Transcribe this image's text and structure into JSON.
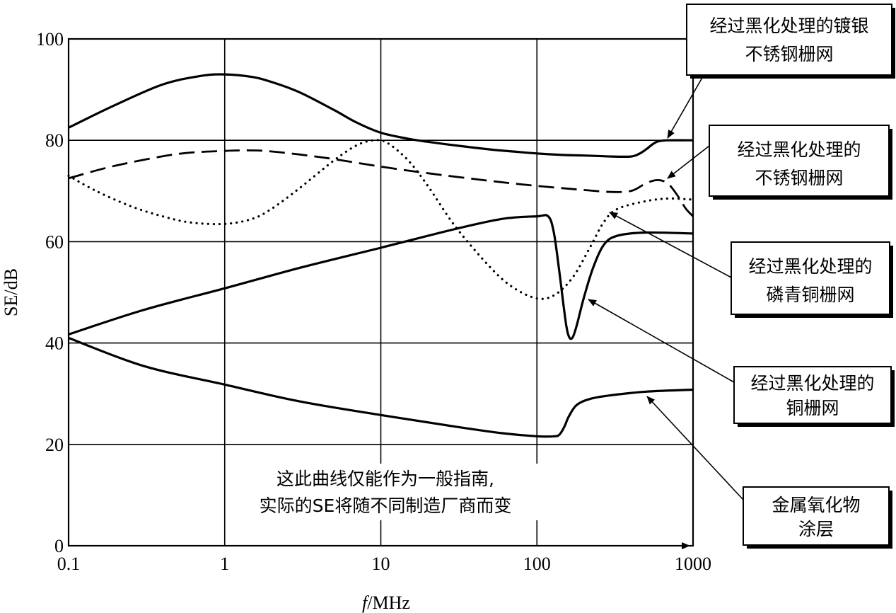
{
  "chart_data": {
    "type": "line",
    "xscale": "log",
    "xlim": [
      0.1,
      1000
    ],
    "ylim": [
      0,
      100
    ],
    "grid": true,
    "xticks": [
      "0.1",
      "1",
      "10",
      "100",
      "1000"
    ],
    "yticks": [
      "0",
      "20",
      "40",
      "60",
      "80",
      "100"
    ],
    "xlabel": {
      "italic": "f",
      "rest": "/MHz"
    },
    "ylabel": "SE/dB",
    "annotation": [
      "这此曲线仅能作为一般指南,",
      "实际的SE将随不同制造厂商而变"
    ],
    "series": [
      {
        "name": "经过黑化处理的镀银不锈钢栅网",
        "style": "solid",
        "label_lines": [
          "经过黑化处理的镀银",
          "不锈钢栅网"
        ],
        "points": [
          [
            0.1,
            82.5
          ],
          [
            0.2,
            87
          ],
          [
            0.4,
            91
          ],
          [
            0.7,
            92.7
          ],
          [
            1,
            93
          ],
          [
            1.5,
            92.5
          ],
          [
            2,
            91.5
          ],
          [
            3,
            89.5
          ],
          [
            5,
            86
          ],
          [
            7,
            83.5
          ],
          [
            10,
            81.5
          ],
          [
            15,
            80.3
          ],
          [
            20,
            79.7
          ],
          [
            30,
            79
          ],
          [
            50,
            78.2
          ],
          [
            70,
            77.8
          ],
          [
            100,
            77.4
          ],
          [
            150,
            77.1
          ],
          [
            200,
            77
          ],
          [
            300,
            76.8
          ],
          [
            400,
            76.8
          ],
          [
            450,
            77.3
          ],
          [
            500,
            78.2
          ],
          [
            550,
            79.2
          ],
          [
            600,
            79.8
          ],
          [
            700,
            80
          ],
          [
            1000,
            80
          ]
        ]
      },
      {
        "name": "经过黑化处理的不锈钢栅网",
        "style": "dashed",
        "label_lines": [
          "经过黑化处理的",
          "不锈钢栅网"
        ],
        "points": [
          [
            0.1,
            72.5
          ],
          [
            0.2,
            75
          ],
          [
            0.5,
            77.3
          ],
          [
            1,
            77.9
          ],
          [
            1.5,
            78
          ],
          [
            2,
            77.8
          ],
          [
            3,
            77.2
          ],
          [
            5,
            76.3
          ],
          [
            10,
            74.8
          ],
          [
            20,
            73.5
          ],
          [
            50,
            72
          ],
          [
            100,
            71
          ],
          [
            200,
            70.2
          ],
          [
            300,
            69.8
          ],
          [
            400,
            70
          ],
          [
            480,
            71.2
          ],
          [
            550,
            72
          ],
          [
            620,
            72.1
          ],
          [
            700,
            71.3
          ],
          [
            800,
            69
          ],
          [
            900,
            66.5
          ],
          [
            1000,
            65
          ]
        ]
      },
      {
        "name": "经过黑化处理的磷青铜栅网",
        "style": "dotted",
        "label_lines": [
          "经过黑化处理的",
          "磷青铜栅网"
        ],
        "points": [
          [
            0.1,
            73
          ],
          [
            0.15,
            70
          ],
          [
            0.25,
            67
          ],
          [
            0.4,
            65
          ],
          [
            0.6,
            63.8
          ],
          [
            1,
            63.5
          ],
          [
            1.5,
            64.5
          ],
          [
            2,
            66.5
          ],
          [
            3,
            70.5
          ],
          [
            5,
            76
          ],
          [
            7,
            79
          ],
          [
            9,
            80
          ],
          [
            11,
            79.5
          ],
          [
            15,
            76
          ],
          [
            20,
            71
          ],
          [
            30,
            63
          ],
          [
            50,
            55
          ],
          [
            70,
            51
          ],
          [
            100,
            48.8
          ],
          [
            130,
            49.5
          ],
          [
            170,
            53
          ],
          [
            220,
            59
          ],
          [
            270,
            64
          ],
          [
            330,
            66.5
          ],
          [
            500,
            68
          ],
          [
            700,
            68.5
          ],
          [
            1000,
            68.3
          ]
        ]
      },
      {
        "name": "经过黑化处理的铜栅网",
        "style": "solid",
        "label_lines": [
          "经过黑化处理的",
          "铜栅网"
        ],
        "points": [
          [
            0.1,
            41.7
          ],
          [
            0.3,
            46.5
          ],
          [
            1,
            50.8
          ],
          [
            3,
            54.8
          ],
          [
            10,
            58.8
          ],
          [
            30,
            62.5
          ],
          [
            60,
            64.5
          ],
          [
            100,
            65
          ],
          [
            118,
            65
          ],
          [
            128,
            62
          ],
          [
            138,
            55
          ],
          [
            148,
            47.5
          ],
          [
            155,
            43
          ],
          [
            162,
            41
          ],
          [
            170,
            41.2
          ],
          [
            180,
            43.5
          ],
          [
            200,
            49
          ],
          [
            230,
            55
          ],
          [
            270,
            59.5
          ],
          [
            330,
            61.2
          ],
          [
            500,
            61.8
          ],
          [
            1000,
            61.6
          ]
        ]
      },
      {
        "name": "金属氧化物涂层",
        "style": "solid",
        "label_lines": [
          "金属氧化物",
          "涂层"
        ],
        "points": [
          [
            0.1,
            41
          ],
          [
            0.3,
            35.5
          ],
          [
            1,
            31.8
          ],
          [
            3,
            28.5
          ],
          [
            10,
            25.8
          ],
          [
            30,
            23.5
          ],
          [
            60,
            22.2
          ],
          [
            100,
            21.6
          ],
          [
            130,
            21.6
          ],
          [
            140,
            22
          ],
          [
            150,
            23.5
          ],
          [
            160,
            25.5
          ],
          [
            180,
            27.8
          ],
          [
            220,
            29
          ],
          [
            300,
            29.7
          ],
          [
            500,
            30.4
          ],
          [
            1000,
            30.8
          ]
        ]
      }
    ]
  }
}
